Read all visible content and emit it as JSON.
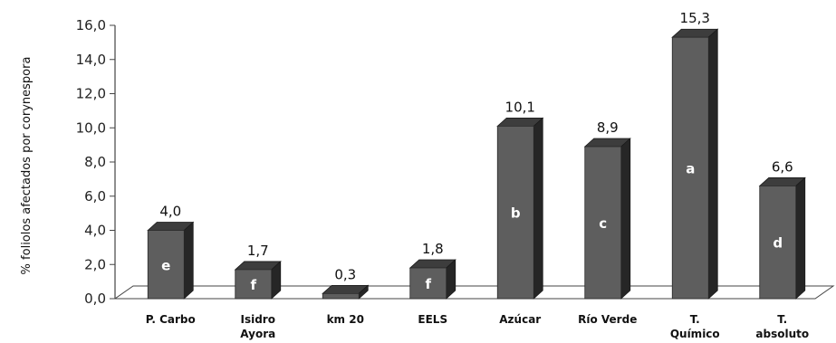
{
  "chart_data": {
    "type": "bar",
    "title": "",
    "xlabel": "",
    "ylabel": "% foliolos afectados por corynespora",
    "ylim": [
      0,
      16
    ],
    "yticks": [
      "0,0",
      "2,0",
      "4,0",
      "6,0",
      "8,0",
      "10,0",
      "12,0",
      "14,0",
      "16,0"
    ],
    "grid": false,
    "categories": [
      [
        "P. Carbo"
      ],
      [
        "Isidro",
        "Ayora"
      ],
      [
        "km 20"
      ],
      [
        "EELS"
      ],
      [
        "Azúcar"
      ],
      [
        "Río Verde"
      ],
      [
        "T.",
        "Químico"
      ],
      [
        "T.",
        "absoluto"
      ]
    ],
    "values": [
      4.0,
      1.7,
      0.3,
      1.8,
      10.1,
      8.9,
      15.3,
      6.6
    ],
    "value_labels": [
      "4,0",
      "1,7",
      "0,3",
      "1,8",
      "10,1",
      "8,9",
      "15,3",
      "6,6"
    ],
    "group_letters": [
      "e",
      "f",
      "",
      "f",
      "b",
      "c",
      "a",
      "d"
    ],
    "colors": {
      "front": "#5e5e5e",
      "side": "#262626",
      "top": "#3d3d3d",
      "axis": "#444444"
    }
  }
}
